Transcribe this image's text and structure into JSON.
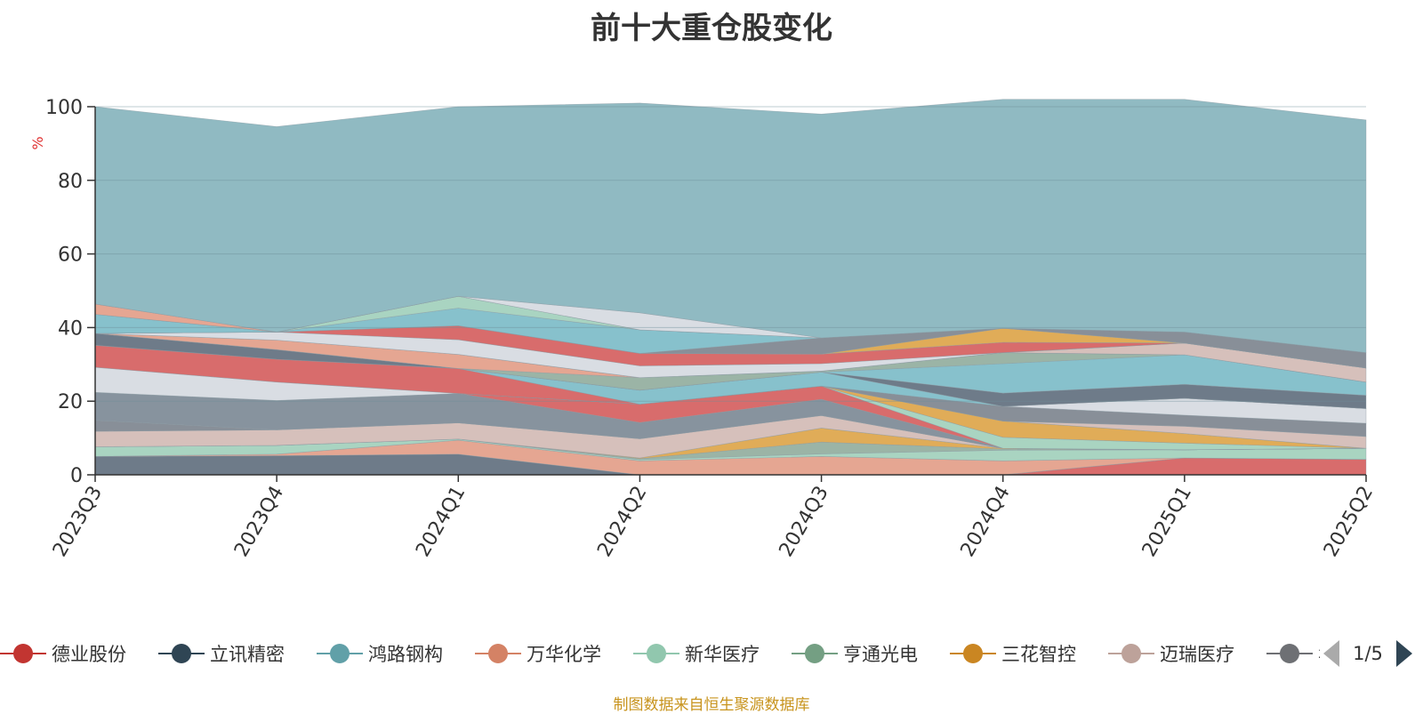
{
  "title": "前十大重仓股变化",
  "source_note": "制图数据来自恒生聚源数据库",
  "legend_page": "1/5",
  "chart_data": {
    "type": "area",
    "stacked": true,
    "title": "前十大重仓股变化",
    "ylabel": "%",
    "ylim": [
      0,
      100
    ],
    "yticks": [
      0,
      20,
      40,
      60,
      80,
      100
    ],
    "grid": true,
    "legend_position": "bottom",
    "categories": [
      "2023Q3",
      "2023Q4",
      "2024Q1",
      "2024Q2",
      "2024Q3",
      "2024Q4",
      "2025Q1",
      "2025Q2"
    ],
    "series": [
      {
        "name": "",
        "color": "#d86c6c",
        "values": [
          0,
          0,
          0,
          0,
          0,
          0,
          4.6,
          4.2
        ]
      },
      {
        "name": "",
        "color": "#6e7b89",
        "values": [
          5.0,
          5.2,
          5.6,
          0,
          0,
          0,
          0,
          0
        ]
      },
      {
        "name": "",
        "color": "#e5a692",
        "values": [
          0,
          0.4,
          3.8,
          3.8,
          5.0,
          3.8,
          0,
          0
        ]
      },
      {
        "name": "",
        "color": "#a9d4c1",
        "values": [
          2.6,
          2.4,
          0.3,
          0.3,
          0.7,
          2.9,
          2.2,
          3.0
        ]
      },
      {
        "name": "",
        "color": "#9bb4a6",
        "values": [
          0,
          0,
          0,
          0.3,
          3.2,
          0.3,
          0,
          0
        ]
      },
      {
        "name": "",
        "color": "#e0ac58",
        "values": [
          0,
          0,
          0,
          0.2,
          3.8,
          0.2,
          0,
          0
        ]
      },
      {
        "name": "",
        "color": "#d6c0bb",
        "values": [
          4.2,
          4.2,
          4.4,
          5.2,
          3.4,
          0,
          0,
          0
        ]
      },
      {
        "name": "",
        "color": "#888f98",
        "values": [
          3.0,
          0,
          0,
          0,
          0,
          0,
          0,
          0
        ]
      },
      {
        "name": "",
        "color": "#87939e",
        "values": [
          7.6,
          8.0,
          8.0,
          4.4,
          4.4,
          0,
          0,
          0
        ]
      },
      {
        "name": "",
        "color": "#d86c6c",
        "values": [
          0,
          0,
          0,
          5.0,
          3.6,
          0,
          0,
          0
        ]
      },
      {
        "name": "",
        "color": "#a9d4c1",
        "values": [
          0,
          0,
          0,
          0,
          0,
          3.0,
          1.8,
          0
        ]
      },
      {
        "name": "",
        "color": "#e0ac58",
        "values": [
          0,
          0,
          0,
          0,
          0,
          4.4,
          2.6,
          0
        ]
      },
      {
        "name": "",
        "color": "#d6c0bb",
        "values": [
          0,
          0,
          0,
          0,
          0,
          0,
          2.0,
          3.2
        ]
      },
      {
        "name": "",
        "color": "#888f98",
        "values": [
          0,
          0,
          0,
          0,
          0,
          4.0,
          3.0,
          3.6
        ]
      },
      {
        "name": "",
        "color": "#d9dde3",
        "values": [
          6.8,
          5.0,
          0,
          0,
          0,
          0,
          4.6,
          4.0
        ]
      },
      {
        "name": "",
        "color": "#d86c6c",
        "values": [
          6.0,
          6.2,
          6.8,
          0,
          0,
          0,
          0,
          0
        ]
      },
      {
        "name": "",
        "color": "#87c1cc",
        "values": [
          0,
          0,
          0,
          3.8,
          3.8,
          0,
          0,
          0
        ]
      },
      {
        "name": "",
        "color": "#6e7b89",
        "values": [
          3.2,
          2.6,
          0,
          0,
          0,
          3.6,
          3.8,
          3.6
        ]
      },
      {
        "name": "",
        "color": "#87c1cc",
        "values": [
          0,
          0,
          0,
          0,
          0,
          8.0,
          8.0,
          3.6
        ]
      },
      {
        "name": "",
        "color": "#9bb4a6",
        "values": [
          0,
          0,
          0,
          3.4,
          0.3,
          3.0,
          0,
          0
        ]
      },
      {
        "name": "",
        "color": "#e5a692",
        "values": [
          0,
          2.6,
          3.8,
          0,
          0,
          0,
          0,
          0
        ]
      },
      {
        "name": "",
        "color": "#d6c0bb",
        "values": [
          0,
          0,
          0,
          0,
          0,
          0,
          3.2,
          3.8
        ]
      },
      {
        "name": "",
        "color": "#d9dde3",
        "values": [
          0,
          2.2,
          4.0,
          3.2,
          2.0,
          0,
          0,
          0
        ]
      },
      {
        "name": "",
        "color": "#d86c6c",
        "values": [
          0,
          0,
          3.8,
          3.4,
          2.6,
          2.8,
          0,
          0
        ]
      },
      {
        "name": "",
        "color": "#e0ac58",
        "values": [
          0,
          0,
          0,
          0,
          0,
          3.8,
          0,
          0
        ]
      },
      {
        "name": "",
        "color": "#888f98",
        "values": [
          0,
          0,
          0,
          0,
          4.4,
          0,
          3.0,
          4.2
        ]
      },
      {
        "name": "",
        "color": "#87c1cc",
        "values": [
          5.2,
          0,
          4.8,
          6.4,
          0,
          0,
          0,
          0
        ]
      },
      {
        "name": "",
        "color": "#a9d4c1",
        "values": [
          0,
          0,
          3.2,
          0,
          0,
          0,
          0,
          0
        ]
      },
      {
        "name": "",
        "color": "#e5a692",
        "values": [
          2.8,
          0,
          0,
          0,
          0,
          0,
          0,
          0
        ]
      },
      {
        "name": "",
        "color": "#d9dde3",
        "values": [
          0,
          0,
          0,
          4.6,
          0,
          0,
          0,
          0
        ]
      },
      {
        "name": "",
        "color": "#90bac2",
        "values": [
          53.6,
          55.8,
          51.5,
          57.0,
          60.8,
          62.2,
          63.2,
          63.2
        ]
      }
    ]
  },
  "legend": {
    "items": [
      {
        "name": "德业股份",
        "color": "#c23531"
      },
      {
        "name": "立讯精密",
        "color": "#2f4554"
      },
      {
        "name": "鸿路钢构",
        "color": "#61a0a8"
      },
      {
        "name": "万华化学",
        "color": "#d48265"
      },
      {
        "name": "新华医疗",
        "color": "#91c7ae"
      },
      {
        "name": "亨通光电",
        "color": "#749f83"
      },
      {
        "name": "三花智控",
        "color": "#ca8622"
      },
      {
        "name": "迈瑞医疗",
        "color": "#bda29a"
      },
      {
        "name": "华",
        "color": "#6e7074"
      }
    ]
  }
}
